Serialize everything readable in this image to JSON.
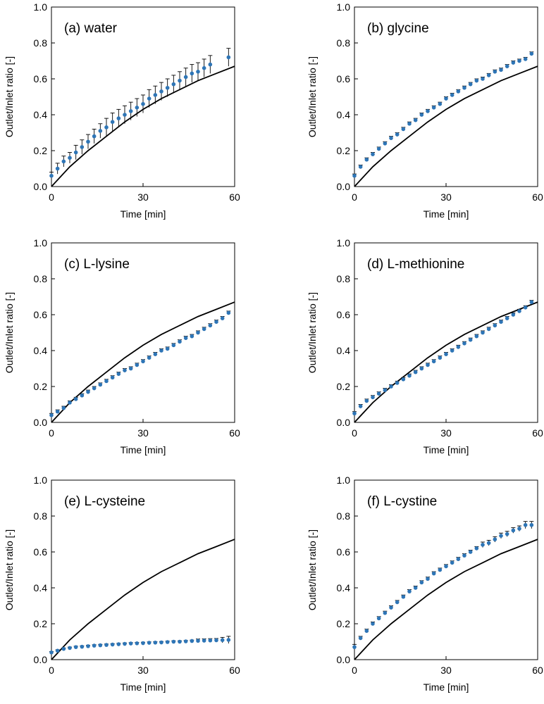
{
  "colors": {
    "marker": "#2e75b6",
    "model_line": "#000000",
    "error_bar": "#000000",
    "axis": "#000000"
  },
  "chart_data": [
    {
      "type": "scatter",
      "title": "(a) water",
      "xlabel": "Time [min]",
      "ylabel": "Outlet/Inlet ratio [-]",
      "xlim": [
        0,
        60
      ],
      "ylim": [
        0,
        1
      ],
      "x_ticks": [
        "0",
        "30",
        "60"
      ],
      "y_ticks": [
        "0.0",
        "0.2",
        "0.4",
        "0.6",
        "0.8",
        "1.0"
      ],
      "grid": false,
      "x": [
        0,
        2,
        4,
        6,
        8,
        10,
        12,
        14,
        16,
        18,
        20,
        22,
        24,
        26,
        28,
        30,
        32,
        34,
        36,
        38,
        40,
        42,
        44,
        46,
        48,
        50,
        52,
        58
      ],
      "values": [
        0.06,
        0.1,
        0.14,
        0.16,
        0.19,
        0.22,
        0.25,
        0.28,
        0.31,
        0.33,
        0.36,
        0.38,
        0.4,
        0.42,
        0.44,
        0.46,
        0.49,
        0.51,
        0.53,
        0.55,
        0.57,
        0.59,
        0.61,
        0.63,
        0.64,
        0.66,
        0.68,
        0.72
      ],
      "errors": [
        0.02,
        0.03,
        0.03,
        0.03,
        0.04,
        0.04,
        0.04,
        0.04,
        0.04,
        0.05,
        0.05,
        0.05,
        0.05,
        0.05,
        0.05,
        0.05,
        0.05,
        0.05,
        0.05,
        0.05,
        0.05,
        0.05,
        0.05,
        0.05,
        0.05,
        0.05,
        0.05,
        0.05
      ],
      "model_curve": {
        "x": [
          0,
          6,
          12,
          18,
          24,
          30,
          36,
          42,
          48,
          54,
          60
        ],
        "values": [
          0,
          0.11,
          0.2,
          0.28,
          0.36,
          0.43,
          0.49,
          0.54,
          0.59,
          0.63,
          0.67
        ]
      }
    },
    {
      "type": "scatter",
      "title": "(b) glycine",
      "xlabel": "Time [min]",
      "ylabel": "Outlet/Inlet ratio [-]",
      "xlim": [
        0,
        60
      ],
      "ylim": [
        0,
        1
      ],
      "x_ticks": [
        "0",
        "30",
        "60"
      ],
      "y_ticks": [
        "0.0",
        "0.2",
        "0.4",
        "0.6",
        "0.8",
        "1.0"
      ],
      "grid": false,
      "x": [
        0,
        2,
        4,
        6,
        8,
        10,
        12,
        14,
        16,
        18,
        20,
        22,
        24,
        26,
        28,
        30,
        32,
        34,
        36,
        38,
        40,
        42,
        44,
        46,
        48,
        50,
        52,
        54,
        56,
        58
      ],
      "values": [
        0.06,
        0.11,
        0.15,
        0.18,
        0.21,
        0.24,
        0.27,
        0.29,
        0.32,
        0.35,
        0.37,
        0.4,
        0.42,
        0.44,
        0.46,
        0.49,
        0.51,
        0.53,
        0.55,
        0.57,
        0.59,
        0.6,
        0.62,
        0.64,
        0.65,
        0.67,
        0.69,
        0.7,
        0.71,
        0.74
      ],
      "errors": [
        0.01,
        0.01,
        0.01,
        0.01,
        0.01,
        0.01,
        0.01,
        0.01,
        0.01,
        0.01,
        0.01,
        0.01,
        0.01,
        0.01,
        0.01,
        0.01,
        0.01,
        0.01,
        0.01,
        0.01,
        0.01,
        0.01,
        0.01,
        0.01,
        0.01,
        0.01,
        0.01,
        0.01,
        0.01,
        0.01
      ],
      "model_curve": {
        "x": [
          0,
          6,
          12,
          18,
          24,
          30,
          36,
          42,
          48,
          54,
          60
        ],
        "values": [
          0,
          0.11,
          0.2,
          0.28,
          0.36,
          0.43,
          0.49,
          0.54,
          0.59,
          0.63,
          0.67
        ]
      }
    },
    {
      "type": "scatter",
      "title": "(c) L-lysine",
      "xlabel": "Time [min]",
      "ylabel": "Outlet/Inlet ratio [-]",
      "xlim": [
        0,
        60
      ],
      "ylim": [
        0,
        1
      ],
      "x_ticks": [
        "0",
        "30",
        "60"
      ],
      "y_ticks": [
        "0.0",
        "0.2",
        "0.4",
        "0.6",
        "0.8",
        "1.0"
      ],
      "grid": false,
      "x": [
        0,
        2,
        4,
        6,
        8,
        10,
        12,
        14,
        16,
        18,
        20,
        22,
        24,
        26,
        28,
        30,
        32,
        34,
        36,
        38,
        40,
        42,
        44,
        46,
        48,
        50,
        52,
        54,
        56,
        58
      ],
      "values": [
        0.04,
        0.06,
        0.08,
        0.11,
        0.13,
        0.15,
        0.17,
        0.19,
        0.21,
        0.23,
        0.25,
        0.27,
        0.29,
        0.3,
        0.32,
        0.34,
        0.36,
        0.38,
        0.4,
        0.41,
        0.43,
        0.45,
        0.47,
        0.48,
        0.5,
        0.52,
        0.54,
        0.56,
        0.58,
        0.61
      ],
      "errors": [
        0.01,
        0.01,
        0.01,
        0.01,
        0.01,
        0.01,
        0.01,
        0.01,
        0.01,
        0.01,
        0.01,
        0.01,
        0.01,
        0.01,
        0.01,
        0.01,
        0.01,
        0.01,
        0.01,
        0.01,
        0.01,
        0.01,
        0.01,
        0.01,
        0.01,
        0.01,
        0.01,
        0.01,
        0.01,
        0.01
      ],
      "model_curve": {
        "x": [
          0,
          6,
          12,
          18,
          24,
          30,
          36,
          42,
          48,
          54,
          60
        ],
        "values": [
          0,
          0.11,
          0.2,
          0.28,
          0.36,
          0.43,
          0.49,
          0.54,
          0.59,
          0.63,
          0.67
        ]
      }
    },
    {
      "type": "scatter",
      "title": "(d) L-methionine",
      "xlabel": "Time [min]",
      "ylabel": "Outlet/Inlet ratio [-]",
      "xlim": [
        0,
        60
      ],
      "ylim": [
        0,
        1
      ],
      "x_ticks": [
        "0",
        "30",
        "60"
      ],
      "y_ticks": [
        "0.0",
        "0.2",
        "0.4",
        "0.6",
        "0.8",
        "1.0"
      ],
      "grid": false,
      "x": [
        0,
        2,
        4,
        6,
        8,
        10,
        12,
        14,
        16,
        18,
        20,
        22,
        24,
        26,
        28,
        30,
        32,
        34,
        36,
        38,
        40,
        42,
        44,
        46,
        48,
        50,
        52,
        54,
        56,
        58
      ],
      "values": [
        0.05,
        0.09,
        0.12,
        0.14,
        0.16,
        0.18,
        0.2,
        0.22,
        0.24,
        0.26,
        0.28,
        0.3,
        0.32,
        0.34,
        0.36,
        0.38,
        0.4,
        0.42,
        0.44,
        0.46,
        0.48,
        0.5,
        0.52,
        0.54,
        0.56,
        0.58,
        0.6,
        0.62,
        0.64,
        0.67
      ],
      "errors": [
        0.01,
        0.01,
        0.01,
        0.01,
        0.01,
        0.01,
        0.01,
        0.01,
        0.01,
        0.01,
        0.01,
        0.01,
        0.01,
        0.01,
        0.01,
        0.01,
        0.01,
        0.01,
        0.01,
        0.01,
        0.01,
        0.01,
        0.01,
        0.01,
        0.01,
        0.01,
        0.01,
        0.01,
        0.01,
        0.01
      ],
      "model_curve": {
        "x": [
          0,
          6,
          12,
          18,
          24,
          30,
          36,
          42,
          48,
          54,
          60
        ],
        "values": [
          0,
          0.11,
          0.2,
          0.28,
          0.36,
          0.43,
          0.49,
          0.54,
          0.59,
          0.63,
          0.67
        ]
      }
    },
    {
      "type": "scatter",
      "title": "(e) L-cysteine",
      "xlabel": "Time [min]",
      "ylabel": "Outlet/Inlet ratio [-]",
      "xlim": [
        0,
        60
      ],
      "ylim": [
        0,
        1
      ],
      "x_ticks": [
        "0",
        "30",
        "60"
      ],
      "y_ticks": [
        "0.0",
        "0.2",
        "0.4",
        "0.6",
        "0.8",
        "1.0"
      ],
      "grid": false,
      "x": [
        0,
        2,
        4,
        6,
        8,
        10,
        12,
        14,
        16,
        18,
        20,
        22,
        24,
        26,
        28,
        30,
        32,
        34,
        36,
        38,
        40,
        42,
        44,
        46,
        48,
        50,
        52,
        54,
        56,
        58
      ],
      "values": [
        0.04,
        0.05,
        0.06,
        0.065,
        0.07,
        0.072,
        0.075,
        0.078,
        0.08,
        0.082,
        0.084,
        0.086,
        0.088,
        0.09,
        0.091,
        0.092,
        0.094,
        0.095,
        0.096,
        0.098,
        0.1,
        0.1,
        0.102,
        0.104,
        0.105,
        0.106,
        0.107,
        0.108,
        0.109,
        0.11
      ],
      "errors": [
        0.005,
        0.005,
        0.005,
        0.005,
        0.005,
        0.005,
        0.005,
        0.005,
        0.005,
        0.005,
        0.005,
        0.005,
        0.005,
        0.005,
        0.005,
        0.005,
        0.005,
        0.005,
        0.005,
        0.005,
        0.005,
        0.005,
        0.005,
        0.005,
        0.01,
        0.01,
        0.01,
        0.01,
        0.015,
        0.02
      ],
      "model_curve": {
        "x": [
          0,
          6,
          12,
          18,
          24,
          30,
          36,
          42,
          48,
          54,
          60
        ],
        "values": [
          0,
          0.11,
          0.2,
          0.28,
          0.36,
          0.43,
          0.49,
          0.54,
          0.59,
          0.63,
          0.67
        ]
      }
    },
    {
      "type": "scatter",
      "title": "(f) L-cystine",
      "xlabel": "Time [min]",
      "ylabel": "Outlet/Inlet ratio [-]",
      "xlim": [
        0,
        60
      ],
      "ylim": [
        0,
        1
      ],
      "x_ticks": [
        "0",
        "30",
        "60"
      ],
      "y_ticks": [
        "0.0",
        "0.2",
        "0.4",
        "0.6",
        "0.8",
        "1.0"
      ],
      "grid": false,
      "x": [
        0,
        2,
        4,
        6,
        8,
        10,
        12,
        14,
        16,
        18,
        20,
        22,
        24,
        26,
        28,
        30,
        32,
        34,
        36,
        38,
        40,
        42,
        44,
        46,
        48,
        50,
        52,
        54,
        56,
        58
      ],
      "values": [
        0.07,
        0.12,
        0.16,
        0.2,
        0.23,
        0.26,
        0.29,
        0.32,
        0.35,
        0.38,
        0.4,
        0.43,
        0.45,
        0.48,
        0.5,
        0.52,
        0.54,
        0.56,
        0.58,
        0.6,
        0.62,
        0.64,
        0.65,
        0.67,
        0.69,
        0.7,
        0.72,
        0.73,
        0.75,
        0.75
      ],
      "errors": [
        0.015,
        0.01,
        0.01,
        0.01,
        0.01,
        0.01,
        0.01,
        0.01,
        0.01,
        0.01,
        0.01,
        0.01,
        0.01,
        0.01,
        0.01,
        0.01,
        0.01,
        0.01,
        0.01,
        0.01,
        0.01,
        0.015,
        0.015,
        0.015,
        0.015,
        0.015,
        0.015,
        0.015,
        0.02,
        0.02
      ],
      "model_curve": {
        "x": [
          0,
          6,
          12,
          18,
          24,
          30,
          36,
          42,
          48,
          54,
          60
        ],
        "values": [
          0,
          0.11,
          0.2,
          0.28,
          0.36,
          0.43,
          0.49,
          0.54,
          0.59,
          0.63,
          0.67
        ]
      }
    }
  ]
}
